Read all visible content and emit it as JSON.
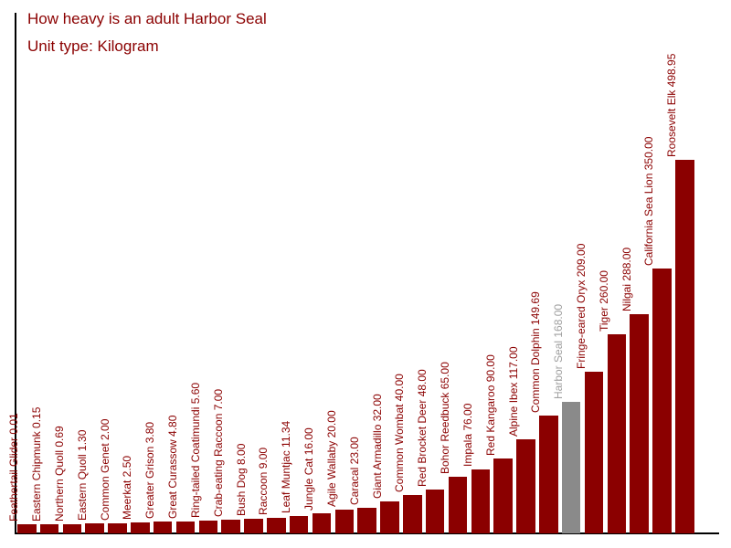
{
  "chart": {
    "title": "How heavy is an adult Harbor Seal",
    "subtitle": "Unit type: Kilogram"
  },
  "chart_data": {
    "type": "bar",
    "title": "How heavy is an adult Harbor Seal",
    "subtitle": "Unit type: Kilogram",
    "unit": "Kilogram",
    "orientation": "vertical",
    "sort": "ascending",
    "grid": false,
    "legend": false,
    "ylim": [
      0,
      500
    ],
    "categories": [
      "Feathertail Glider",
      "Eastern Chipmunk",
      "Northern Quoll",
      "Eastern Quoll",
      "Common Genet",
      "Meerkat",
      "Greater Grison",
      "Great Curassow",
      "Ring-tailed Coatimundi",
      "Crab-eating Raccoon",
      "Bush Dog",
      "Raccoon",
      "Leaf Muntjac",
      "Jungle Cat",
      "Agile Wallaby",
      "Caracal",
      "Giant Armadillo",
      "Common Wombat",
      "Red Brocket Deer",
      "Bohor Reedbuck",
      "Impala",
      "Red Kangaroo",
      "Alpine Ibex",
      "Common Dolphin",
      "Harbor Seal",
      "Fringe-eared Oryx",
      "Tiger",
      "Nilgai",
      "California Sea Lion",
      "Roosevelt Elk"
    ],
    "values": [
      0.01,
      0.15,
      0.69,
      1.3,
      2.0,
      2.5,
      3.8,
      4.8,
      5.6,
      7.0,
      8.0,
      9.0,
      11.34,
      16.0,
      20.0,
      23.0,
      32.0,
      40.0,
      48.0,
      65.0,
      76.0,
      90.0,
      117.0,
      149.69,
      168.0,
      209.0,
      260.0,
      288.0,
      350.0,
      498.95
    ],
    "labels": [
      "Feathertail Glider 0.01",
      "Eastern Chipmunk 0.15",
      "Northern Quoll 0.69",
      "Eastern Quoll 1.30",
      "Common Genet 2.00",
      "Meerkat 2.50",
      "Greater Grison 3.80",
      "Great Curassow 4.80",
      "Ring-tailed Coatimundi 5.60",
      "Crab-eating Raccoon 7.00",
      "Bush Dog 8.00",
      "Raccoon 9.00",
      "Leaf Muntjac 11.34",
      "Jungle Cat 16.00",
      "Agile Wallaby 20.00",
      "Caracal 23.00",
      "Giant Armadillo 32.00",
      "Common Wombat 40.00",
      "Red Brocket Deer 48.00",
      "Bohor Reedbuck 65.00",
      "Impala 76.00",
      "Red Kangaroo 90.00",
      "Alpine Ibex 117.00",
      "Common Dolphin 149.69",
      "Harbor Seal 168.00",
      "Fringe-eared Oryx 209.00",
      "Tiger 260.00",
      "Nilgai 288.00",
      "California Sea Lion 350.00",
      "Roosevelt Elk 498.95"
    ],
    "highlight": {
      "category": "Harbor Seal",
      "index": 24,
      "bar_color": "#8a8a8a",
      "label_color": "#a0a0a0"
    },
    "colors": {
      "bar": "#8B0000",
      "label": "#8B0000",
      "title": "#8B0000",
      "axis": "#000000"
    }
  }
}
